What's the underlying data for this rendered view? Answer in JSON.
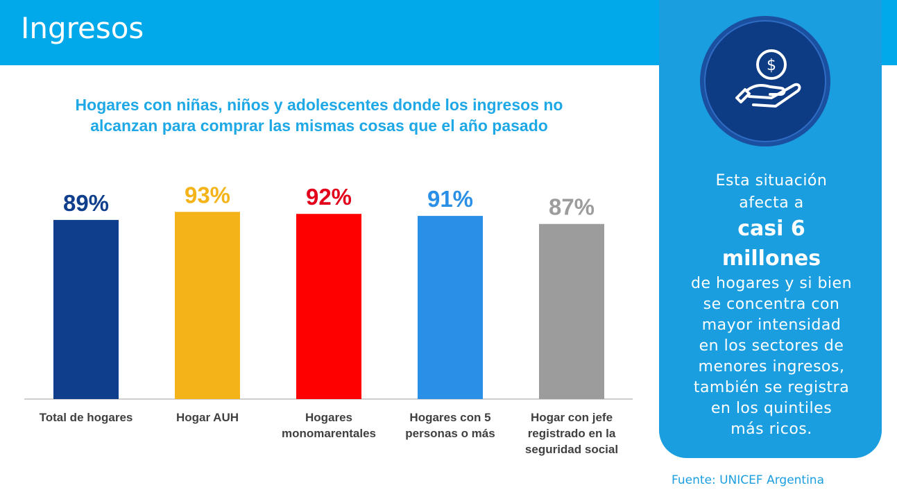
{
  "header": {
    "title": "Ingresos"
  },
  "chart_data": {
    "type": "bar",
    "title": "Hogares con niñas, niños y adolescentes donde los ingresos no alcanzan para comprar las mismas cosas que el año pasado",
    "title_lines": [
      "Hogares con niñas, niños y adolescentes donde los ingresos no",
      "alcanzan para comprar las mismas cosas que el año pasado"
    ],
    "categories": [
      [
        "Total de hogares"
      ],
      [
        "Hogar AUH"
      ],
      [
        "Hogares",
        "monomarentales"
      ],
      [
        "Hogares con 5",
        "personas o más"
      ],
      [
        "Hogar con jefe",
        "registrado en la",
        "seguridad social"
      ]
    ],
    "values": [
      89,
      93,
      92,
      91,
      87
    ],
    "value_labels": [
      "89%",
      "93%",
      "92%",
      "91%",
      "87%"
    ],
    "colors": [
      "#0f3f8c",
      "#f5b31a",
      "#ff0000",
      "#2a8fe6",
      "#9c9c9c"
    ],
    "label_colors": [
      "#0f3f8c",
      "#f5b31a",
      "#e3001b",
      "#2a8fe6",
      "#9c9c9c"
    ],
    "ylim": [
      0,
      100
    ],
    "grid": false,
    "legend": "none"
  },
  "panel": {
    "icon": "hand-dollar-icon",
    "line1": "Esta situación",
    "line2": "afecta a",
    "highlight1": "casi 6",
    "highlight2": "millones",
    "body": [
      "de hogares y si bien",
      "se concentra con",
      "mayor intensidad",
      "en los sectores de",
      "menores ingresos,",
      "también se registra",
      "en los quintiles",
      "más ricos."
    ]
  },
  "source": "Fuente: UNICEF Argentina",
  "colors": {
    "header": "#02a9ea",
    "panel": "#1a9ee0",
    "coin": "#0d3b84"
  }
}
